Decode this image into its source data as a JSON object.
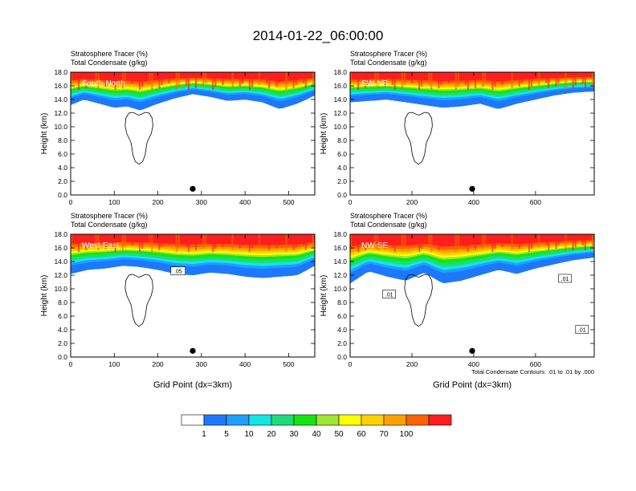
{
  "title": "2014-01-22_06:00:00",
  "chart_data": [
    {
      "type": "heatmap",
      "cross_section": "South-North",
      "left_title_1": "Stratosphere Tracer   (%)",
      "left_title_2": "Total Condensate   (g/kg)",
      "ylabel": "Height (km)",
      "xlabel": "",
      "ylim": [
        0,
        18
      ],
      "xlim": [
        0,
        560
      ],
      "yticks": [
        "0.0",
        "2.0",
        "4.0",
        "6.0",
        "8.0",
        "10.0",
        "12.0",
        "14.0",
        "16.0",
        "18.0"
      ],
      "xticks": [
        0,
        100,
        200,
        300,
        400,
        500
      ],
      "marker_x": 280,
      "tracer_profile": {
        "x": [
          0,
          30,
          60,
          100,
          130,
          160,
          200,
          240,
          280,
          320,
          360,
          400,
          440,
          480,
          520,
          560
        ],
        "bottom": [
          13.2,
          14.0,
          13.5,
          12.8,
          13.0,
          12.4,
          13.4,
          14.2,
          14.8,
          14.4,
          13.8,
          14.0,
          13.6,
          12.6,
          13.4,
          14.6
        ]
      }
    },
    {
      "type": "heatmap",
      "cross_section": "SW-NE",
      "left_title_1": "Stratosphere Tracer   (%)",
      "left_title_2": "Total Condensate   (g/kg)",
      "ylabel": "Height (km)",
      "xlabel": "",
      "ylim": [
        0,
        18
      ],
      "xlim": [
        0,
        790
      ],
      "yticks": [
        "0.0",
        "2.0",
        "4.0",
        "6.0",
        "8.0",
        "10.0",
        "12.0",
        "14.0",
        "16.0",
        "18.0"
      ],
      "xticks": [
        0,
        200,
        400,
        600
      ],
      "marker_x": 395,
      "tracer_profile": {
        "x": [
          0,
          60,
          120,
          180,
          240,
          300,
          360,
          420,
          480,
          540,
          600,
          660,
          720,
          790
        ],
        "bottom": [
          13.6,
          13.8,
          14.0,
          13.6,
          13.2,
          12.8,
          13.0,
          13.4,
          12.6,
          13.4,
          14.0,
          14.6,
          15.0,
          15.2
        ]
      }
    },
    {
      "type": "heatmap",
      "cross_section": "West-East",
      "left_title_1": "Stratosphere Tracer   (%)",
      "left_title_2": "Total Condensate   (g/kg)",
      "ylabel": "Height (km)",
      "xlabel": "Grid Point (dx=3km)",
      "ylim": [
        0,
        18
      ],
      "xlim": [
        0,
        560
      ],
      "yticks": [
        "0.0",
        "2.0",
        "4.0",
        "6.0",
        "8.0",
        "10.0",
        "12.0",
        "14.0",
        "16.0",
        "18.0"
      ],
      "xticks": [
        0,
        100,
        200,
        300,
        400,
        500
      ],
      "marker_x": 280,
      "contour_label": ".05",
      "tracer_profile": {
        "x": [
          0,
          40,
          80,
          120,
          160,
          200,
          240,
          280,
          320,
          360,
          400,
          440,
          480,
          520,
          560
        ],
        "bottom": [
          12.2,
          12.8,
          13.0,
          13.4,
          13.2,
          12.8,
          12.2,
          12.0,
          12.4,
          12.2,
          11.8,
          11.6,
          11.8,
          12.0,
          13.4
        ]
      }
    },
    {
      "type": "heatmap",
      "cross_section": "NW-SE",
      "left_title_1": "Stratosphere Tracer   (%)",
      "left_title_2": "Total Condensate   (g/kg)",
      "ylabel": "Height (km)",
      "xlabel": "Grid Point (dx=3km)",
      "ylim": [
        0,
        18
      ],
      "xlim": [
        0,
        790
      ],
      "yticks": [
        "0.0",
        "2.0",
        "4.0",
        "6.0",
        "8.0",
        "10.0",
        "12.0",
        "14.0",
        "16.0",
        "18.0"
      ],
      "xticks": [
        0,
        200,
        400,
        600
      ],
      "marker_x": 395,
      "contour_labels": [
        ".01",
        ".01",
        ".01"
      ],
      "contour_note": "Total Condensate Contours: .01 to .01 by .000",
      "tracer_profile": {
        "x": [
          0,
          60,
          120,
          180,
          240,
          300,
          360,
          420,
          480,
          540,
          600,
          660,
          720,
          790
        ],
        "bottom": [
          10.8,
          12.6,
          11.8,
          11.2,
          12.4,
          10.8,
          11.2,
          12.0,
          12.8,
          12.2,
          13.0,
          13.6,
          14.2,
          14.6
        ]
      }
    }
  ],
  "colorbar": {
    "colors": [
      "#ffffff",
      "#1e78ff",
      "#1ea0ff",
      "#14e6e6",
      "#1edc78",
      "#14e614",
      "#a0e632",
      "#ffff00",
      "#ffd200",
      "#ffa000",
      "#ff6400",
      "#ff1e1e"
    ],
    "labels": [
      "1",
      "5",
      "10",
      "20",
      "30",
      "40",
      "50",
      "60",
      "70",
      "100"
    ]
  }
}
